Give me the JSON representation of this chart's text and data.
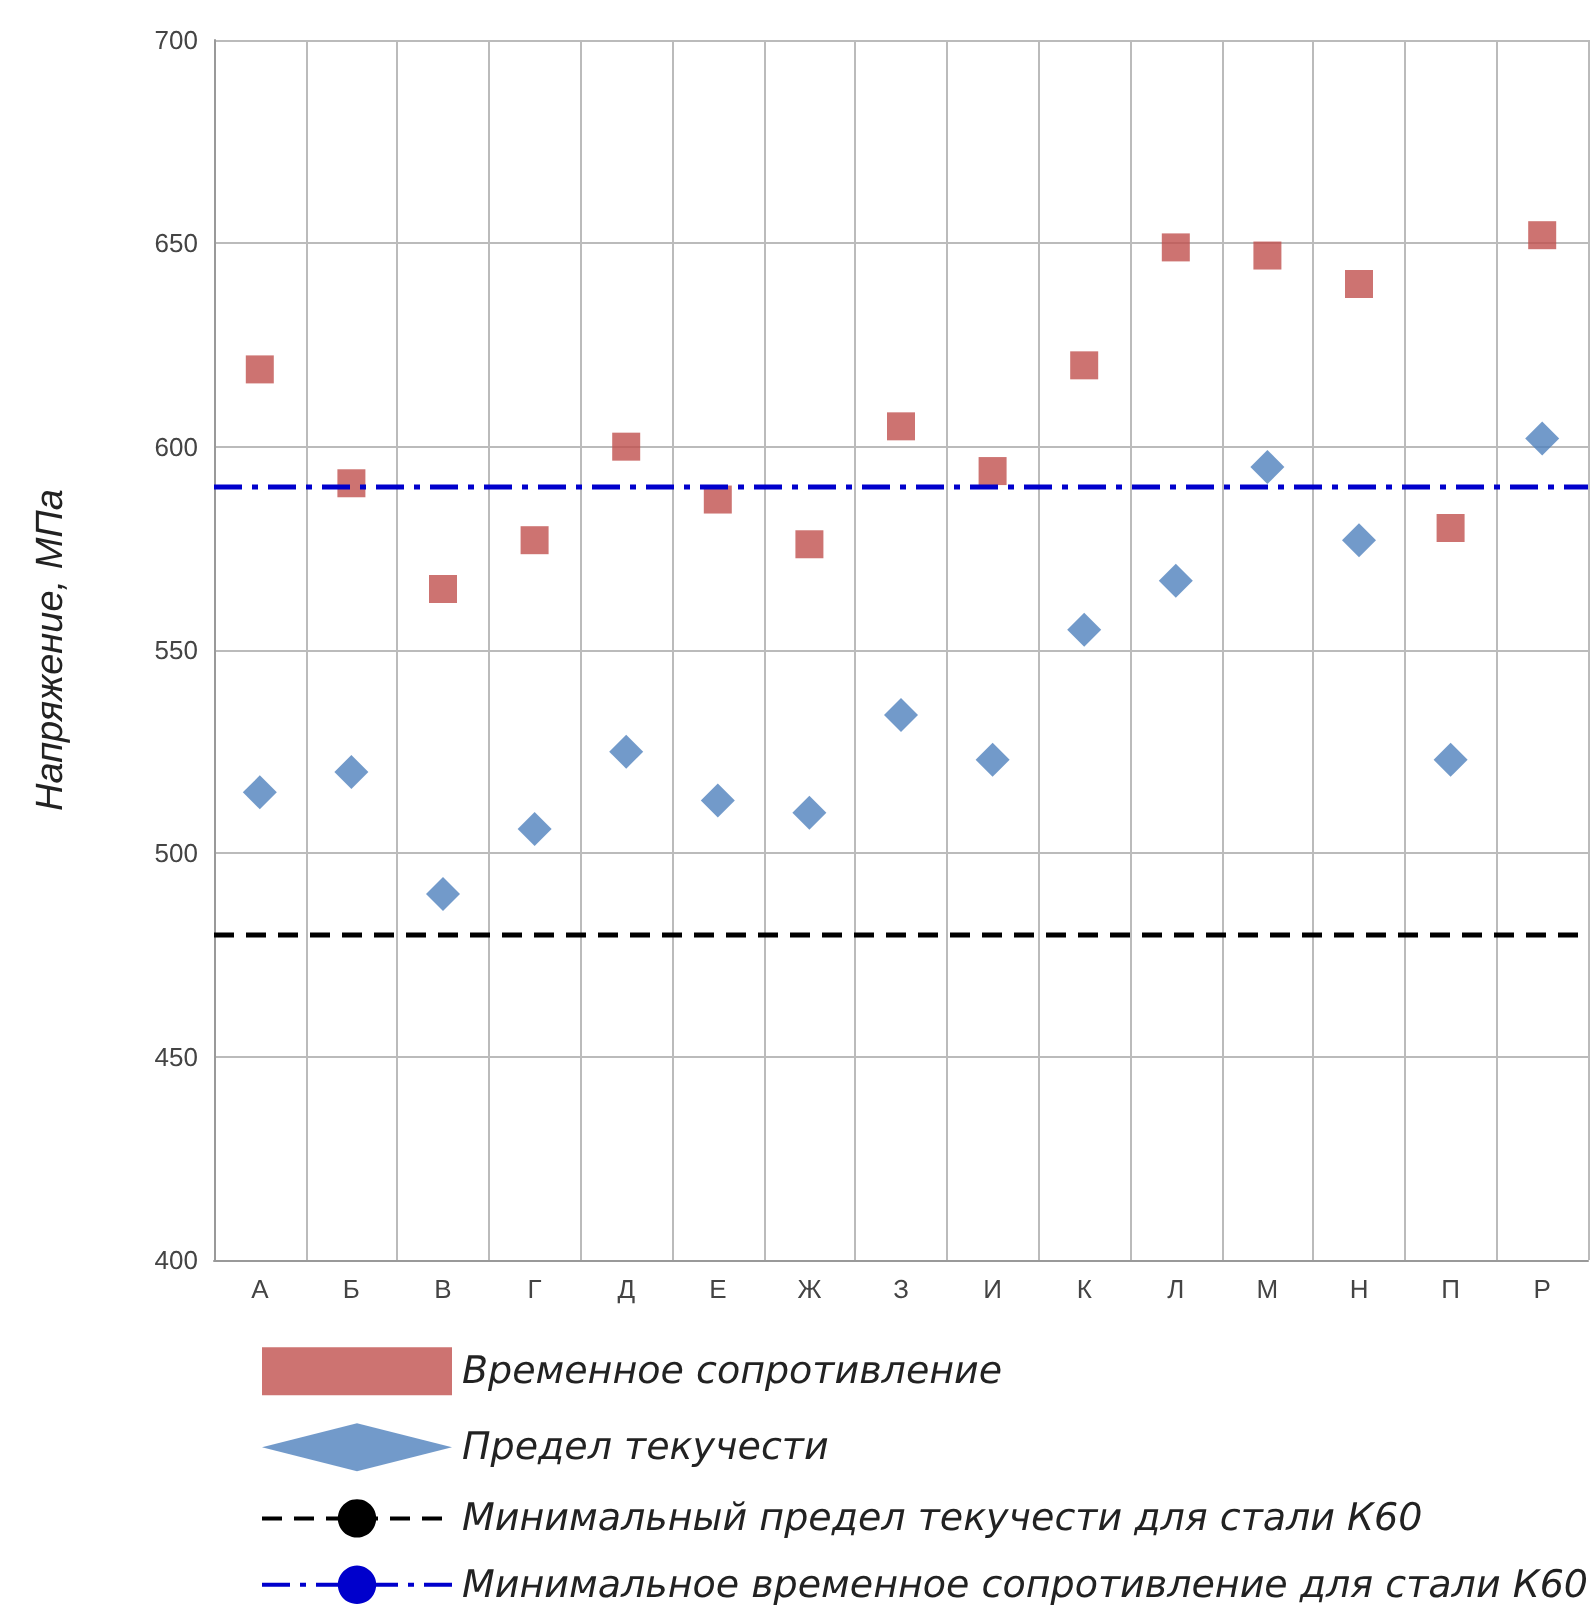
{
  "chart_data": {
    "type": "scatter",
    "ylabel": "Напряжение, МПа",
    "categories": [
      "А",
      "Б",
      "В",
      "Г",
      "Д",
      "Е",
      "Ж",
      "З",
      "И",
      "К",
      "Л",
      "М",
      "Н",
      "П",
      "Р"
    ],
    "series": [
      {
        "name": "Временное сопротивление",
        "color": "#c0504d",
        "marker": "square",
        "values": [
          619,
          591,
          565,
          577,
          600,
          587,
          576,
          605,
          594,
          620,
          649,
          647,
          640,
          580,
          652
        ]
      },
      {
        "name": "Предел текучести",
        "color": "#4f81bd",
        "marker": "diamond",
        "values": [
          515,
          520,
          490,
          506,
          525,
          513,
          510,
          534,
          523,
          555,
          567,
          595,
          577,
          523,
          602
        ]
      }
    ],
    "ylim": [
      400,
      700
    ],
    "yticks": [
      400,
      450,
      500,
      550,
      600,
      650,
      700
    ],
    "grid": true,
    "legend": "bottom",
    "ref_lines": [
      {
        "axis": "y",
        "value": 480,
        "label": "Минимальный предел текучести для стали К60",
        "color": "#000000",
        "line_style": "dashed"
      },
      {
        "axis": "y",
        "value": 590,
        "label": "Минимальное временное сопротивление для стали К60",
        "color": "#0000cc",
        "line_style": "dashdot"
      }
    ]
  }
}
